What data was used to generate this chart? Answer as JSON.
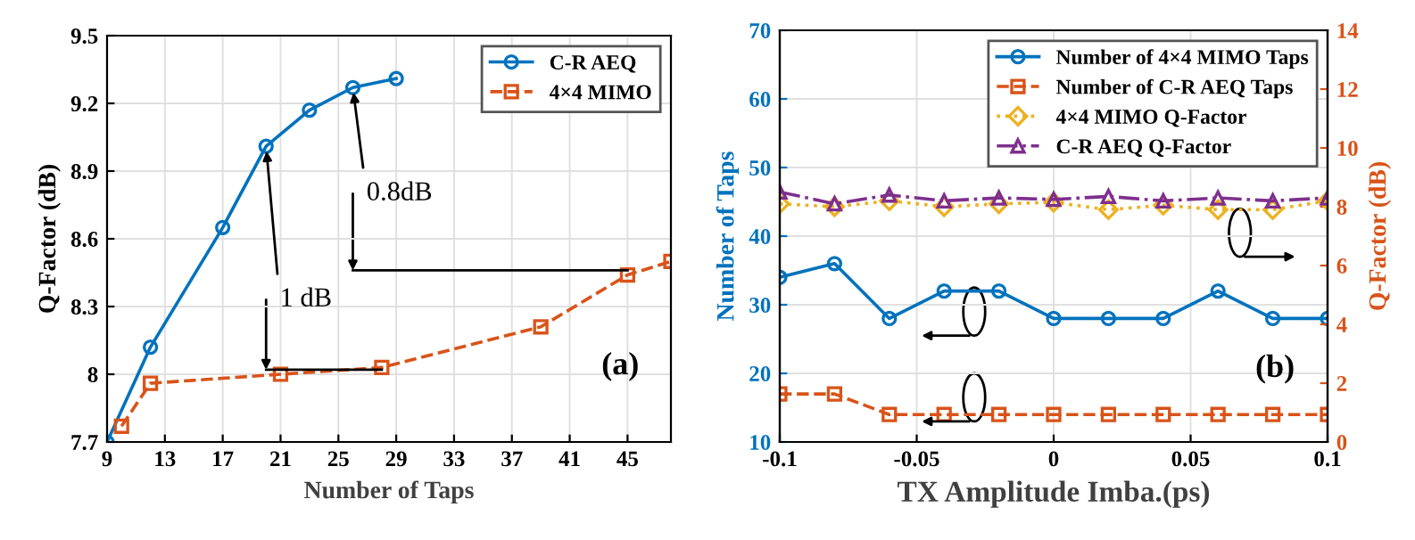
{
  "chart_data": [
    {
      "type": "line",
      "xlabel": "Number of Taps",
      "ylabel": "Q-Factor (dB)",
      "xlim": [
        9,
        48
      ],
      "xticks": [
        9,
        13,
        17,
        21,
        25,
        29,
        33,
        37,
        41,
        45
      ],
      "ylim": [
        7.7,
        9.5
      ],
      "yticks": [
        7.7,
        8,
        8.3,
        8.6,
        8.9,
        9.2,
        9.5
      ],
      "grid": true,
      "legend": "top right",
      "series": [
        {
          "name": "C-R AEQ",
          "color": "#0072bd",
          "marker": "circle",
          "line_style": "solid",
          "x": [
            9,
            12,
            17,
            20,
            23,
            26,
            29
          ],
          "values": [
            7.7,
            8.12,
            8.65,
            9.01,
            9.17,
            9.27,
            9.31
          ]
        },
        {
          "name": "4×4 MIMO",
          "color": "#d95319",
          "marker": "square",
          "line_style": "dashed",
          "x": [
            10,
            12,
            21,
            28,
            39,
            45,
            48
          ],
          "values": [
            7.77,
            7.96,
            8.0,
            8.03,
            8.21,
            8.44,
            8.5
          ]
        }
      ],
      "annotations": [
        {
          "text": "1 dB",
          "x": 20,
          "y": 9.01
        },
        {
          "text": "0.8dB",
          "x": 26,
          "y": 9.27
        },
        "(a)"
      ]
    },
    {
      "type": "line",
      "xlabel": "TX Amplitude Imba.(ps)",
      "ylabel": "Number of Taps",
      "y2label": "Q-Factor (dB)",
      "x": [
        -0.1,
        -0.08,
        -0.06,
        -0.04,
        -0.02,
        0,
        0.02,
        0.04,
        0.06,
        0.08,
        0.1
      ],
      "xlim": [
        -0.1,
        0.1
      ],
      "xticks": [
        -0.1,
        -0.05,
        0,
        0.05,
        0.1
      ],
      "ylim": [
        10,
        70
      ],
      "yticks": [
        10,
        20,
        30,
        40,
        50,
        60,
        70
      ],
      "y2lim": [
        0,
        14
      ],
      "y2ticks": [
        0,
        2,
        4,
        6,
        8,
        10,
        12,
        14
      ],
      "grid": true,
      "legend": "top right",
      "series": [
        {
          "name": "Number of 4×4 MIMO Taps",
          "color": "#0072bd",
          "marker": "circle",
          "line_style": "solid",
          "values": [
            34,
            36,
            28,
            32,
            32,
            28,
            28,
            28,
            32,
            28,
            28
          ]
        },
        {
          "name": "Number of C-R AEQ Taps",
          "color": "#d95319",
          "marker": "square",
          "line_style": "dashed",
          "values": [
            17,
            17,
            14,
            14,
            14,
            14,
            14,
            14,
            14,
            14,
            14
          ]
        },
        {
          "name": "4×4 MIMO Q-Factor",
          "color": "#edb120",
          "marker": "diamond",
          "line_style": "dotted",
          "axis": "y2",
          "values": [
            8.1,
            8.0,
            8.2,
            8.0,
            8.1,
            8.15,
            7.9,
            8.05,
            7.9,
            7.9,
            8.2
          ]
        },
        {
          "name": "C-R AEQ Q-Factor",
          "color": "#7e2f8e",
          "marker": "triangle",
          "line_style": "dashdot",
          "axis": "y2",
          "values": [
            8.5,
            8.1,
            8.4,
            8.2,
            8.3,
            8.25,
            8.35,
            8.2,
            8.3,
            8.2,
            8.3
          ]
        }
      ],
      "annotations": [
        "(b)"
      ]
    }
  ]
}
